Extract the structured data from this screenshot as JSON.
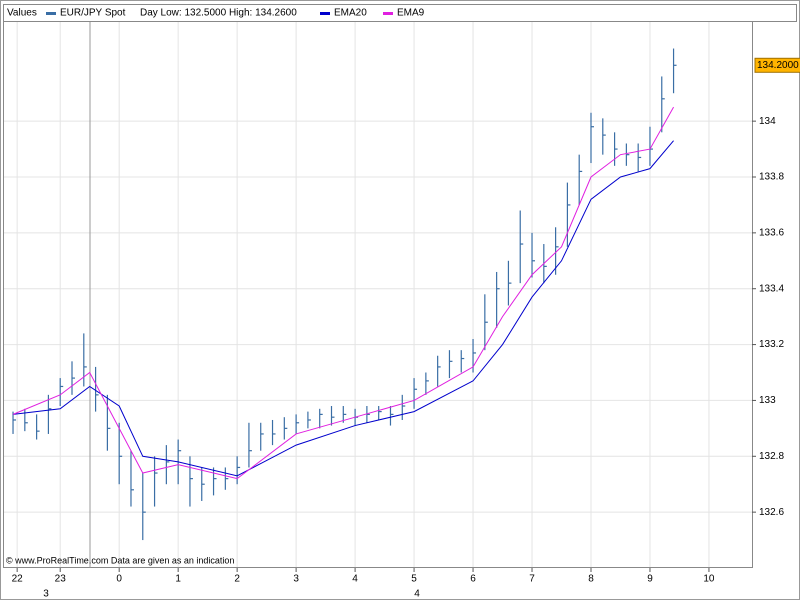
{
  "chart_data": {
    "type": "ohlc",
    "header_label": "Values",
    "title": "EUR/JPY Spot",
    "subtitle": "Day Low: 132.5000 High: 134.2600",
    "color": "#3a6ea5",
    "x": [
      -1.8,
      -1.6,
      -1.4,
      -1.2,
      -1.0,
      -0.8,
      -0.6,
      -0.4,
      -0.2,
      0.0,
      0.2,
      0.4,
      0.6,
      0.8,
      1.0,
      1.2,
      1.4,
      1.6,
      1.8,
      2.0,
      2.2,
      2.4,
      2.6,
      2.8,
      3.0,
      3.2,
      3.4,
      3.6,
      3.8,
      4.0,
      4.2,
      4.4,
      4.6,
      4.8,
      5.0,
      5.2,
      5.4,
      5.6,
      5.8,
      6.0,
      6.2,
      6.4,
      6.6,
      6.8,
      7.0,
      7.2,
      7.4,
      7.6,
      7.8,
      8.0,
      8.2,
      8.4,
      8.6,
      8.8,
      9.0,
      9.2,
      9.4
    ],
    "high": [
      132.96,
      132.97,
      132.95,
      133.02,
      133.08,
      133.14,
      133.24,
      133.12,
      133.02,
      132.92,
      132.82,
      132.74,
      132.8,
      132.84,
      132.86,
      132.8,
      132.76,
      132.76,
      132.76,
      132.8,
      132.92,
      132.92,
      132.93,
      132.94,
      132.95,
      132.96,
      132.97,
      132.98,
      132.98,
      132.97,
      132.98,
      132.98,
      132.98,
      133.02,
      133.08,
      133.1,
      133.16,
      133.18,
      133.18,
      133.22,
      133.38,
      133.46,
      133.5,
      133.68,
      133.6,
      133.56,
      133.62,
      133.78,
      133.88,
      134.03,
      134.01,
      133.96,
      133.92,
      133.92,
      133.98,
      134.16,
      134.26
    ],
    "low": [
      132.88,
      132.89,
      132.86,
      132.88,
      132.98,
      133.02,
      133.05,
      132.96,
      132.82,
      132.7,
      132.62,
      132.5,
      132.62,
      132.7,
      132.7,
      132.62,
      132.64,
      132.66,
      132.68,
      132.7,
      132.76,
      132.82,
      132.84,
      132.86,
      132.88,
      132.9,
      132.9,
      132.91,
      132.92,
      132.91,
      132.92,
      132.93,
      132.91,
      132.93,
      132.97,
      133.02,
      133.05,
      133.08,
      133.1,
      133.1,
      133.18,
      133.26,
      133.34,
      133.42,
      133.44,
      133.42,
      133.45,
      133.55,
      133.7,
      133.85,
      133.88,
      133.84,
      133.84,
      133.82,
      133.84,
      133.96,
      134.1
    ],
    "close": [
      132.93,
      132.92,
      132.89,
      132.97,
      133.05,
      133.08,
      133.12,
      133.02,
      132.9,
      132.8,
      132.68,
      132.6,
      132.74,
      132.78,
      132.82,
      132.72,
      132.7,
      132.72,
      132.72,
      132.76,
      132.82,
      132.88,
      132.88,
      132.9,
      132.92,
      132.93,
      132.95,
      132.94,
      132.95,
      132.94,
      132.95,
      132.96,
      132.95,
      132.98,
      133.04,
      133.07,
      133.12,
      133.14,
      133.15,
      133.17,
      133.28,
      133.4,
      133.42,
      133.56,
      133.5,
      133.48,
      133.55,
      133.7,
      133.82,
      133.98,
      133.95,
      133.9,
      133.88,
      133.87,
      133.9,
      134.08,
      134.2
    ],
    "series": [
      {
        "name": "EMA20",
        "color": "#0000cc",
        "x": [
          -1.8,
          -1,
          -0.5,
          0,
          0.4,
          1,
          2,
          3,
          4,
          5,
          6,
          6.5,
          7,
          7.5,
          8,
          8.5,
          9,
          9.4
        ],
        "values": [
          132.95,
          132.97,
          133.05,
          132.98,
          132.8,
          132.78,
          132.73,
          132.84,
          132.91,
          132.96,
          133.07,
          133.2,
          133.37,
          133.5,
          133.72,
          133.8,
          133.83,
          133.93
        ]
      },
      {
        "name": "EMA9",
        "color": "#e020e0",
        "x": [
          -1.8,
          -1,
          -0.5,
          0,
          0.4,
          1,
          2,
          3,
          4,
          5,
          6,
          6.5,
          7,
          7.5,
          8,
          8.5,
          9,
          9.4
        ],
        "values": [
          132.95,
          133.02,
          133.1,
          132.9,
          132.74,
          132.77,
          132.72,
          132.88,
          132.94,
          133.0,
          133.12,
          133.3,
          133.45,
          133.55,
          133.8,
          133.88,
          133.9,
          134.05
        ]
      }
    ],
    "xlim": [
      -1.97,
      10.73
    ],
    "ylim": [
      132.4,
      134.355
    ],
    "xticks": [
      {
        "value": -1.73,
        "label": "22"
      },
      {
        "value": -1,
        "label": "23"
      },
      0,
      1,
      2,
      3,
      4,
      5,
      6,
      7,
      8,
      9,
      10
    ],
    "date_ticks": [
      {
        "value": -1.24,
        "label": "3"
      },
      {
        "value": 5.05,
        "label": "4"
      }
    ],
    "yticks": [
      132.6,
      132.8,
      133,
      133.2,
      133.4,
      133.6,
      133.8,
      134
    ],
    "last_price": {
      "value": 134.2,
      "label": "134.2000"
    },
    "footer": "© www.ProRealTime.com Data are given as an indication",
    "grid": true
  }
}
